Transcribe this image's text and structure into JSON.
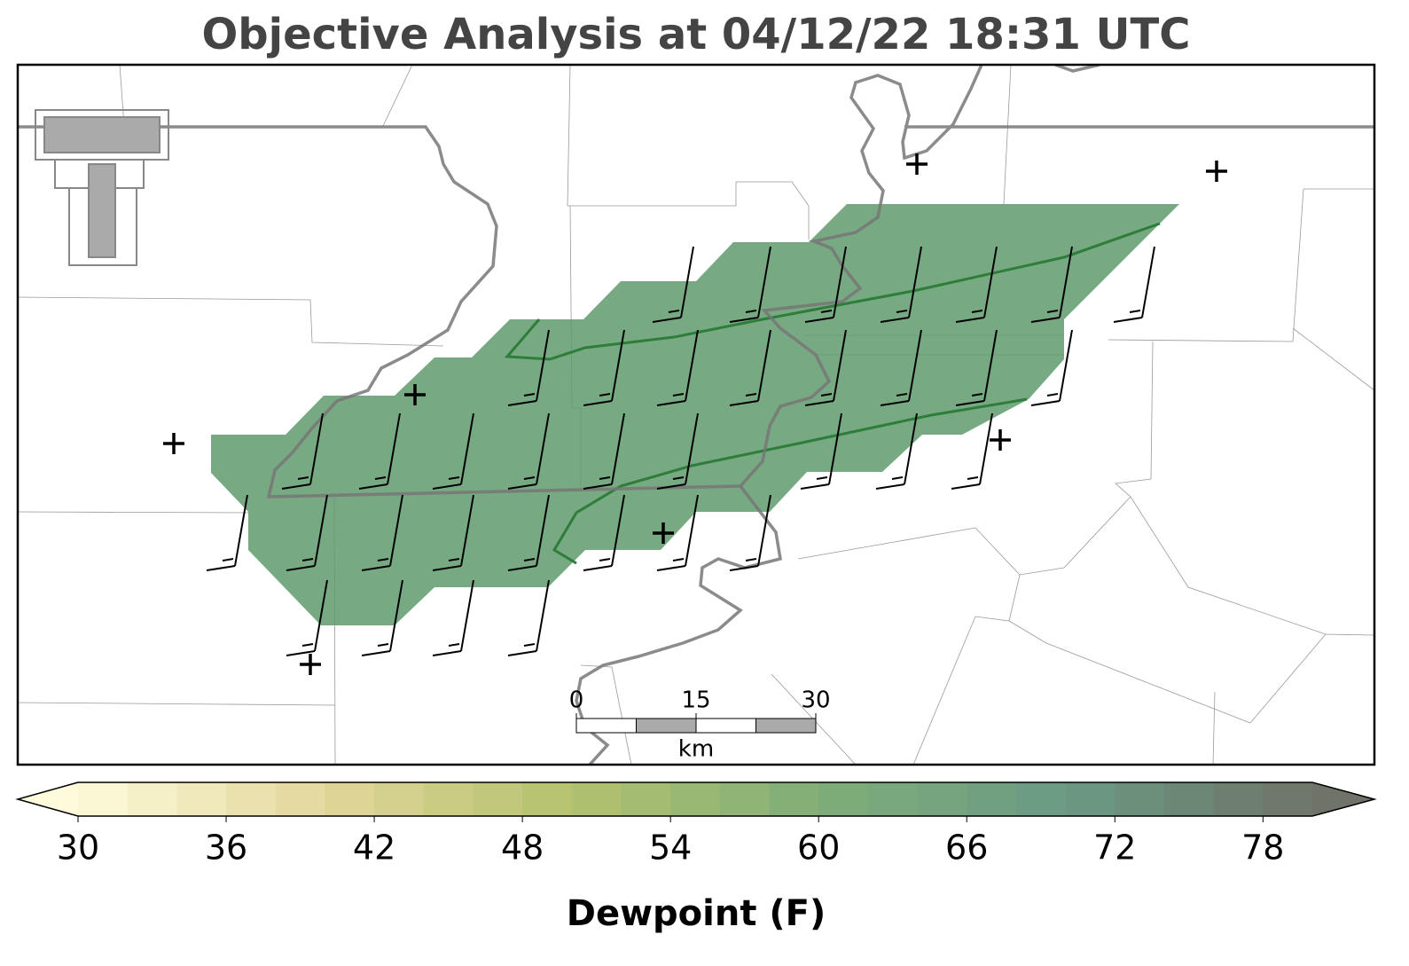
{
  "title": "Objective Analysis at 04/12/22 18:31 UTC",
  "scale_bar": {
    "ticks": [
      0,
      15,
      30
    ],
    "unit": "km"
  },
  "colorbar": {
    "label": "Dewpoint (F)",
    "range": [
      30,
      80
    ],
    "ticks": [
      30,
      36,
      42,
      48,
      54,
      60,
      66,
      72,
      78
    ],
    "colors": [
      "#fefbdc",
      "#e2d69a",
      "#b3c26e",
      "#7fae78",
      "#6a9a84",
      "#707468"
    ]
  }
}
